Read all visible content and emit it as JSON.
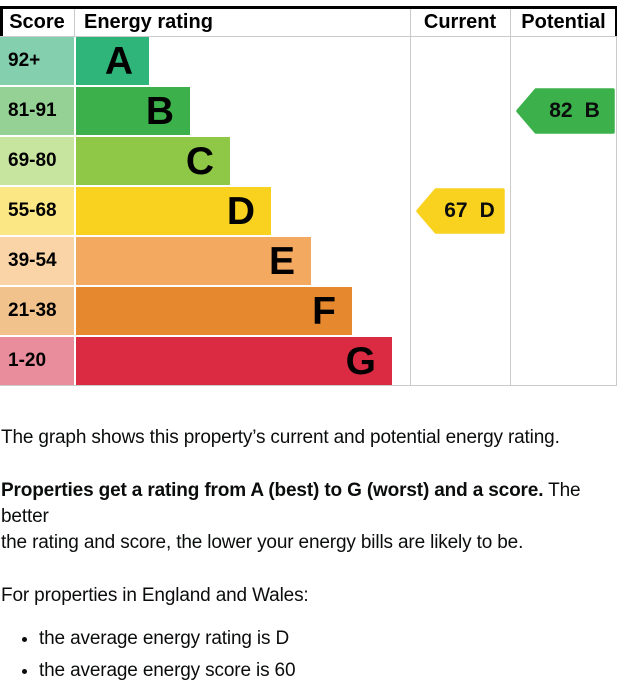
{
  "chart_data": {
    "type": "bar",
    "subtype": "epc-energy-rating",
    "headers": [
      "Score",
      "Energy rating",
      "Current",
      "Potential"
    ],
    "bands": [
      {
        "score_range": "92+",
        "letter": "A",
        "color": "#2fb57a",
        "score_cell_color": "#84cfad"
      },
      {
        "score_range": "81-91",
        "letter": "B",
        "color": "#3cb14b",
        "score_cell_color": "#95d094"
      },
      {
        "score_range": "69-80",
        "letter": "C",
        "color": "#8fc747",
        "score_cell_color": "#c8e5a0"
      },
      {
        "score_range": "55-68",
        "letter": "D",
        "color": "#f8d21e",
        "score_cell_color": "#fbe884"
      },
      {
        "score_range": "39-54",
        "letter": "E",
        "color": "#f3a95f",
        "score_cell_color": "#fad4a6"
      },
      {
        "score_range": "21-38",
        "letter": "F",
        "color": "#e5882e",
        "score_cell_color": "#f1c28b"
      },
      {
        "score_range": "1-20",
        "letter": "G",
        "color": "#da2b43",
        "score_cell_color": "#e98d9c"
      }
    ],
    "current": {
      "score": "67",
      "letter": "D",
      "color": "#f8d21e"
    },
    "potential": {
      "score": "82",
      "letter": "B",
      "color": "#3cb14b"
    }
  },
  "text": {
    "intro": "The graph shows this property’s current and potential energy rating.",
    "rating_bold": "Properties get a rating from A (best) to G (worst) and a score.",
    "rating_rest_line1": "The better",
    "rating_rest_line2": "the rating and score, the lower your energy bills are likely to be.",
    "region_line": "For properties in England and Wales:",
    "bullets": [
      "the average energy rating is D",
      "the average energy score is 60"
    ]
  }
}
